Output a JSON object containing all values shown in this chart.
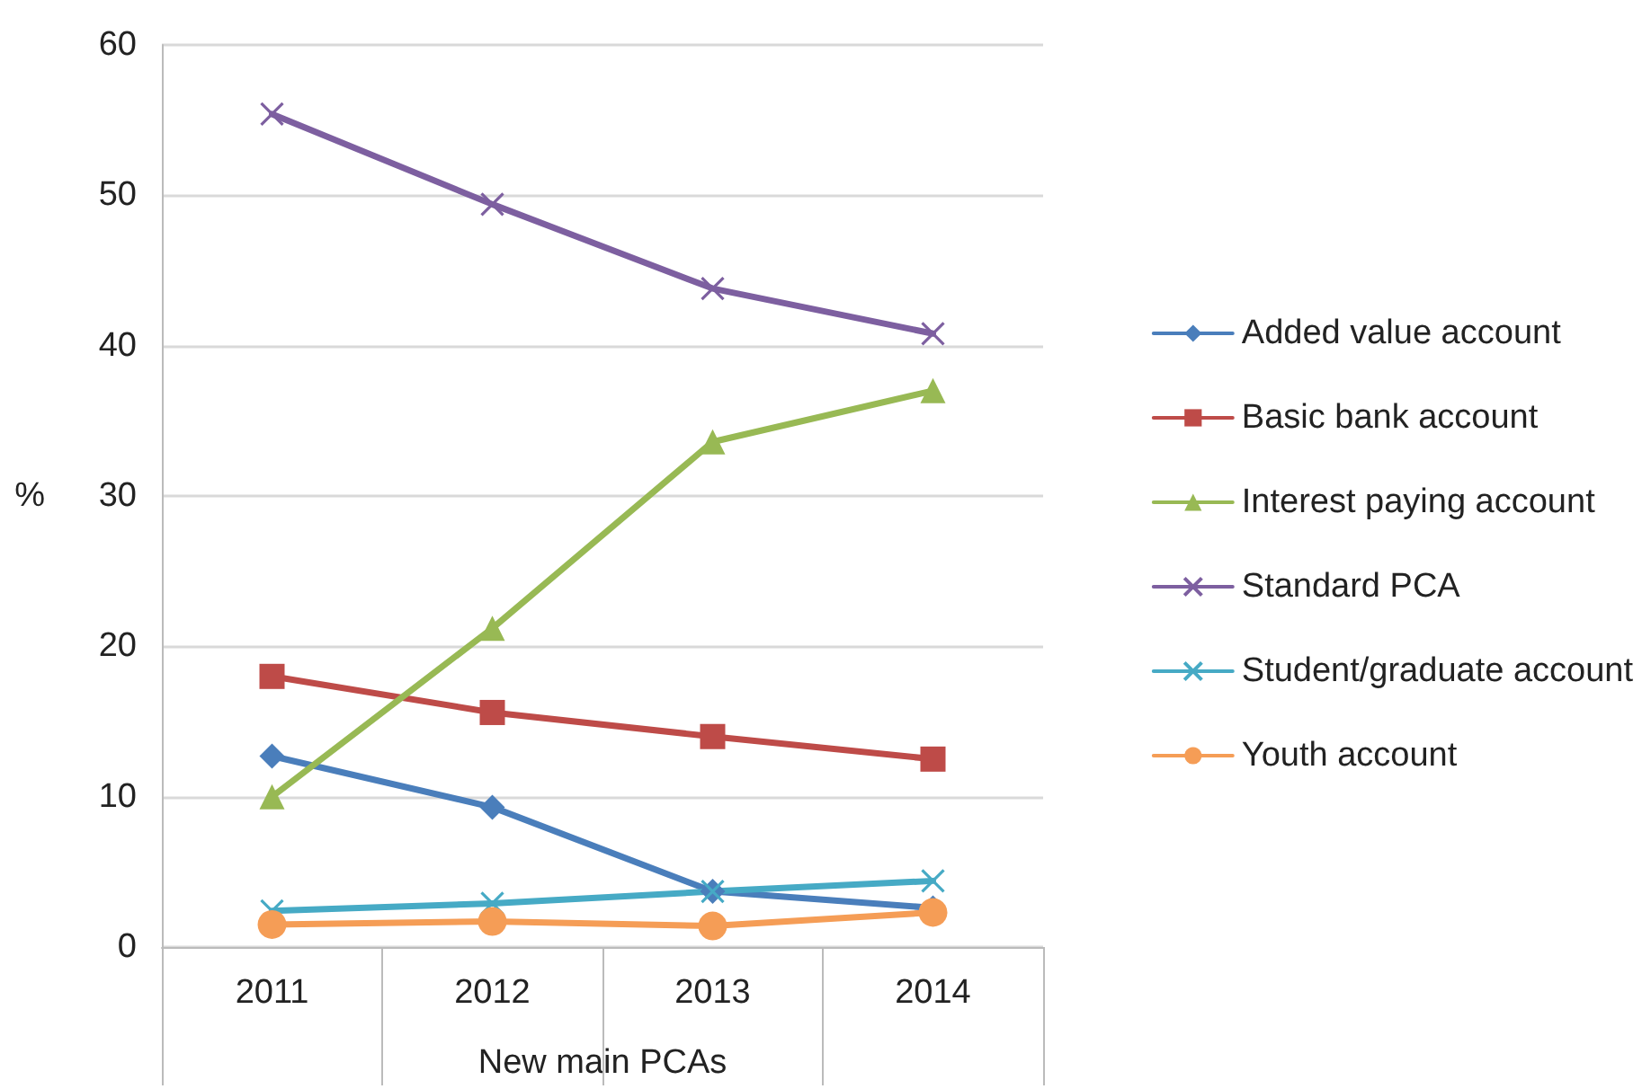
{
  "chart_data": {
    "type": "line",
    "xlabel": "New main PCAs",
    "ylabel": "%",
    "categories": [
      "2011",
      "2012",
      "2013",
      "2014"
    ],
    "ylim": [
      0,
      60
    ],
    "yticks": [
      0,
      10,
      20,
      30,
      40,
      50,
      60
    ],
    "grid": "y",
    "legend": "right",
    "series": [
      {
        "name": "Added value account",
        "color": "#4a7ebb",
        "marker": "diamond",
        "values": [
          12.7,
          9.3,
          3.7,
          2.6
        ]
      },
      {
        "name": "Basic bank account",
        "color": "#be4b48",
        "marker": "square",
        "values": [
          18.0,
          15.6,
          14.0,
          12.5
        ]
      },
      {
        "name": "Interest paying account",
        "color": "#98b954",
        "marker": "triangle",
        "values": [
          10.0,
          21.2,
          33.6,
          37.0
        ]
      },
      {
        "name": "Standard PCA",
        "color": "#7d5fa0",
        "marker": "cross",
        "values": [
          55.4,
          49.4,
          43.8,
          40.8
        ]
      },
      {
        "name": "Student/graduate account",
        "color": "#46aac5",
        "marker": "cross",
        "values": [
          2.4,
          2.9,
          3.7,
          4.4
        ]
      },
      {
        "name": "Youth account",
        "color": "#f59d56",
        "marker": "circle",
        "values": [
          1.5,
          1.7,
          1.4,
          2.3
        ]
      }
    ]
  }
}
